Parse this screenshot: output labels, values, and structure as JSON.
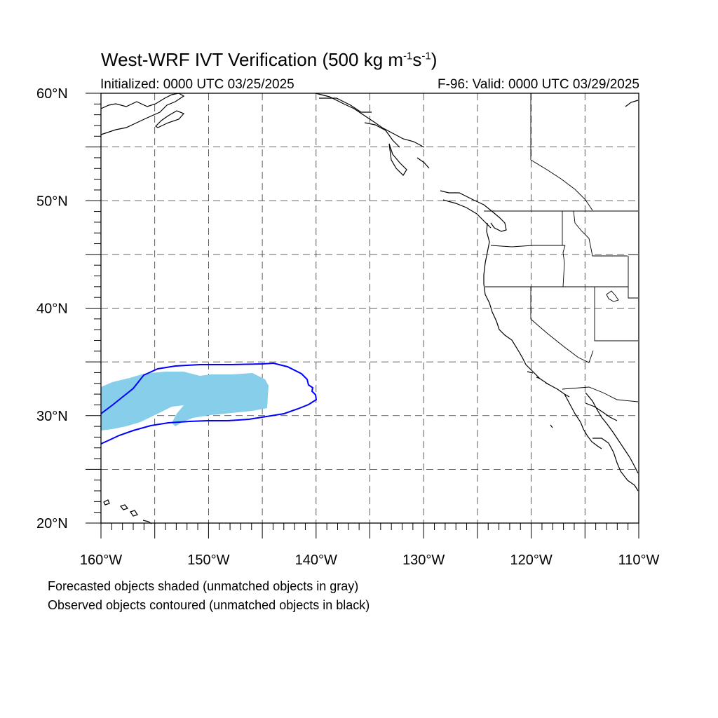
{
  "header": {
    "title_main": "West-WRF IVT Verification (500 kg m",
    "title_sup1": "-1",
    "title_mid": "s",
    "title_sup2": "-1",
    "title_end": ")",
    "initialized": "Initialized: 0000 UTC 03/25/2025",
    "valid": "F-96: Valid: 0000 UTC 03/29/2025"
  },
  "map": {
    "lon_range": [
      -160,
      -110
    ],
    "lat_range": [
      20,
      60
    ],
    "grid": "dashed every 5 degrees",
    "lat_labels": [
      {
        "value": 60,
        "text": "60°N"
      },
      {
        "value": 50,
        "text": "50°N"
      },
      {
        "value": 40,
        "text": "40°N"
      },
      {
        "value": 30,
        "text": "30°N"
      },
      {
        "value": 20,
        "text": "20°N"
      }
    ],
    "lon_labels": [
      {
        "value": -160,
        "text": "160°W"
      },
      {
        "value": -150,
        "text": "150°W"
      },
      {
        "value": -140,
        "text": "140°W"
      },
      {
        "value": -130,
        "text": "130°W"
      },
      {
        "value": -120,
        "text": "120°W"
      },
      {
        "value": -110,
        "text": "110°W"
      }
    ],
    "forecast_fill_color": "#87ceeb",
    "observed_contour_color": "#0000ff"
  },
  "legend": {
    "forecast_note": "Forecasted objects shaded (unmatched objects in gray)",
    "observed_note": "Observed objects contoured (unmatched objects in black)"
  }
}
